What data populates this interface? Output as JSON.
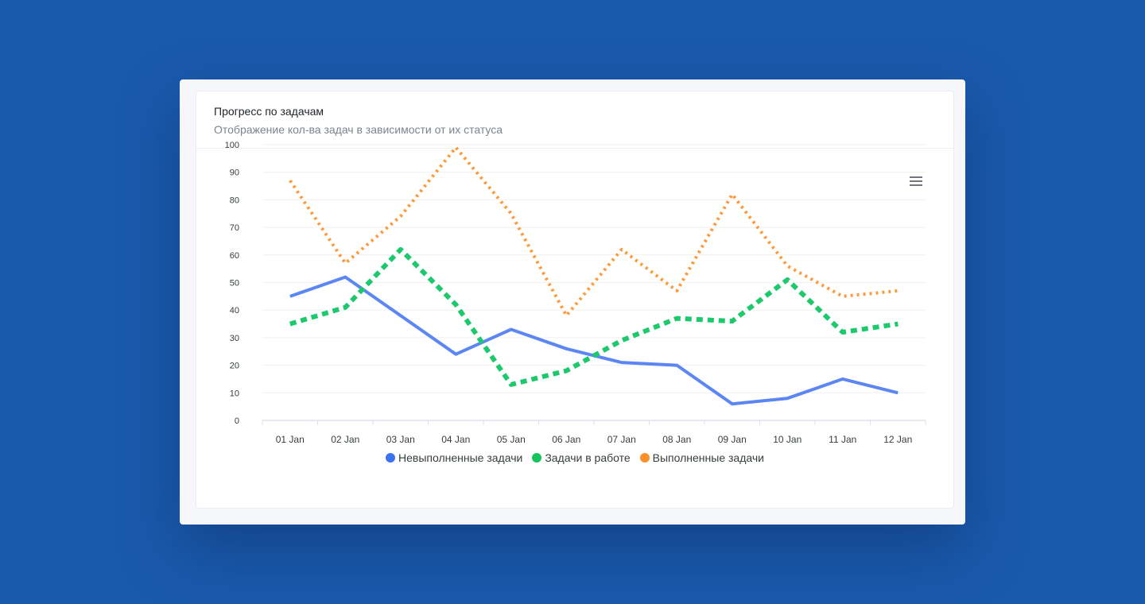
{
  "card": {
    "title": "Прогресс по задачам",
    "subtitle": "Отображение кол-ва задач в зависимости от их статуса"
  },
  "toolbar": {
    "menu_icon": "hamburger-menu-icon"
  },
  "chart_data": {
    "type": "line",
    "title": "",
    "xlabel": "",
    "ylabel": "",
    "categories": [
      "01 Jan",
      "02 Jan",
      "03 Jan",
      "04 Jan",
      "05 Jan",
      "06 Jan",
      "07 Jan",
      "08 Jan",
      "09 Jan",
      "10 Jan",
      "11 Jan",
      "12 Jan"
    ],
    "yticks": [
      0,
      10,
      20,
      30,
      40,
      50,
      60,
      70,
      80,
      90,
      100
    ],
    "ylim": [
      0,
      100
    ],
    "grid": true,
    "legend_position": "bottom-center",
    "series": [
      {
        "name": "Невыполненные задачи",
        "color": "#5b86f3",
        "dash": "solid",
        "values": [
          45,
          52,
          38,
          24,
          33,
          26,
          21,
          20,
          6,
          8,
          15,
          10
        ]
      },
      {
        "name": "Задачи в работе",
        "color": "#1ec96e",
        "dash": "dashed",
        "values": [
          35,
          41,
          62,
          42,
          13,
          18,
          29,
          37,
          36,
          51,
          32,
          35
        ]
      },
      {
        "name": "Выполненные задачи",
        "color": "#fd9a3c",
        "dash": "dotted",
        "values": [
          87,
          57,
          74,
          99,
          75,
          38,
          62,
          47,
          82,
          56,
          45,
          47
        ]
      }
    ],
    "legend_dot_colors": [
      "#3d72ef",
      "#15c35f",
      "#fb8f29"
    ]
  }
}
